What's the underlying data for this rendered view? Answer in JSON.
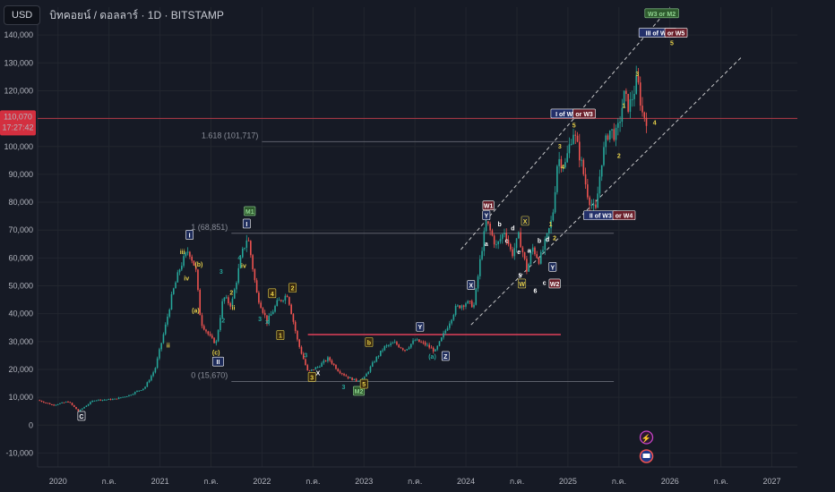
{
  "header": {
    "currency": "USD",
    "symbol": "บิทคอยน์ / ดอลลาร์ · 1D · BITSTAMP"
  },
  "price_badge": {
    "price": "110,070",
    "timer": "17:27:42"
  },
  "colors": {
    "bg": "#161a25",
    "up": "#26a69a",
    "down": "#ef5350",
    "grid": "#22262f",
    "resistance": "#e0405a",
    "channel": "#e6e6e6",
    "price_line": "#b23a48"
  },
  "chart_data": {
    "type": "candlestick",
    "title": "บิทคอยน์ / ดอลลาร์ · 1D · BITSTAMP",
    "ylim": [
      -15000,
      150000
    ],
    "y_ticks": [
      "-10,000",
      "0",
      "10,000",
      "20,000",
      "30,000",
      "40,000",
      "50,000",
      "60,000",
      "70,000",
      "80,000",
      "90,000",
      "100,000",
      "110,000",
      "120,000",
      "130,000",
      "140,000"
    ],
    "x_ticks": [
      {
        "label": "2020",
        "t": 2020.0
      },
      {
        "label": "ก.ค.",
        "t": 2020.5
      },
      {
        "label": "2021",
        "t": 2021.0
      },
      {
        "label": "ก.ค.",
        "t": 2021.5
      },
      {
        "label": "2022",
        "t": 2022.0
      },
      {
        "label": "ก.ค.",
        "t": 2022.5
      },
      {
        "label": "2023",
        "t": 2023.0
      },
      {
        "label": "ก.ค.",
        "t": 2023.5
      },
      {
        "label": "2024",
        "t": 2024.0
      },
      {
        "label": "ก.ค.",
        "t": 2024.5
      },
      {
        "label": "2025",
        "t": 2025.0
      },
      {
        "label": "ก.ค.",
        "t": 2025.5
      },
      {
        "label": "2026",
        "t": 2026.0
      },
      {
        "label": "ก.ค.",
        "t": 2026.5
      },
      {
        "label": "2027",
        "t": 2027.0
      }
    ],
    "xlim": [
      2019.8,
      2027.25
    ],
    "price_path": [
      [
        2019.8,
        9000
      ],
      [
        2019.95,
        7200
      ],
      [
        2020.1,
        8500
      ],
      [
        2020.2,
        5000
      ],
      [
        2020.35,
        9000
      ],
      [
        2020.55,
        9300
      ],
      [
        2020.7,
        10800
      ],
      [
        2020.85,
        13500
      ],
      [
        2020.95,
        20000
      ],
      [
        2021.05,
        35000
      ],
      [
        2021.12,
        47000
      ],
      [
        2021.2,
        57000
      ],
      [
        2021.28,
        63000
      ],
      [
        2021.35,
        56000
      ],
      [
        2021.4,
        37000
      ],
      [
        2021.5,
        31000
      ],
      [
        2021.55,
        29500
      ],
      [
        2021.62,
        46000
      ],
      [
        2021.7,
        43000
      ],
      [
        2021.8,
        61000
      ],
      [
        2021.86,
        68000
      ],
      [
        2021.95,
        47000
      ],
      [
        2022.05,
        37000
      ],
      [
        2022.15,
        44000
      ],
      [
        2022.25,
        47000
      ],
      [
        2022.35,
        30000
      ],
      [
        2022.45,
        19000
      ],
      [
        2022.55,
        21000
      ],
      [
        2022.65,
        24000
      ],
      [
        2022.75,
        19500
      ],
      [
        2022.85,
        17000
      ],
      [
        2022.92,
        16000
      ],
      [
        2023.0,
        16800
      ],
      [
        2023.1,
        23000
      ],
      [
        2023.2,
        28000
      ],
      [
        2023.3,
        29500
      ],
      [
        2023.4,
        27000
      ],
      [
        2023.5,
        30500
      ],
      [
        2023.6,
        29000
      ],
      [
        2023.7,
        26500
      ],
      [
        2023.8,
        34000
      ],
      [
        2023.9,
        42000
      ],
      [
        2024.0,
        44000
      ],
      [
        2024.08,
        43000
      ],
      [
        2024.15,
        62000
      ],
      [
        2024.2,
        73000
      ],
      [
        2024.3,
        64000
      ],
      [
        2024.38,
        70000
      ],
      [
        2024.45,
        61000
      ],
      [
        2024.52,
        68000
      ],
      [
        2024.6,
        55000
      ],
      [
        2024.65,
        64000
      ],
      [
        2024.72,
        59000
      ],
      [
        2024.8,
        68000
      ],
      [
        2024.85,
        75000
      ],
      [
        2024.9,
        96000
      ],
      [
        2024.97,
        93000
      ],
      [
        2025.05,
        106000
      ],
      [
        2025.12,
        96000
      ],
      [
        2025.2,
        82000
      ],
      [
        2025.27,
        76000
      ],
      [
        2025.33,
        95000
      ],
      [
        2025.4,
        106000
      ],
      [
        2025.48,
        104000
      ],
      [
        2025.55,
        118000
      ],
      [
        2025.6,
        114000
      ],
      [
        2025.68,
        124000
      ],
      [
        2025.73,
        112000
      ],
      [
        2025.77,
        110070
      ]
    ],
    "fib_levels": [
      {
        "label": "1.618 (101,717)",
        "value": 101717,
        "t0": 2022.0,
        "t1": 2025.0
      },
      {
        "label": "1 (68,851)",
        "value": 68851,
        "t0": 2021.7,
        "t1": 2025.45
      },
      {
        "label": "0 (15,670)",
        "value": 15670,
        "t0": 2021.7,
        "t1": 2025.45
      }
    ],
    "resistance": {
      "value": 32500,
      "t0": 2022.45,
      "t1": 2024.93
    },
    "channel": [
      {
        "t0": 2023.95,
        "v0": 63000,
        "t1": 2026.0,
        "v1": 150000
      },
      {
        "t0": 2024.05,
        "v0": 36000,
        "t1": 2026.7,
        "v1": 132000
      }
    ],
    "current_price": 110070,
    "wave_labels": [
      {
        "text": "W3 or M2",
        "t": 2025.92,
        "v": 147500,
        "fg": "#8fd28f",
        "bg": "#2e5a2e",
        "box": true
      },
      {
        "text": "III of W3",
        "t": 2025.88,
        "v": 140500,
        "fg": "#ffffff",
        "bg": "#23306a",
        "box": true
      },
      {
        "text": "or W5",
        "t": 2026.06,
        "v": 140500,
        "fg": "#ffffff",
        "bg": "#6a1f2a",
        "box": true
      },
      {
        "text": "5",
        "t": 2026.02,
        "v": 137000,
        "fg": "#e8d24a"
      },
      {
        "text": "I of W3",
        "t": 2024.98,
        "v": 111500,
        "fg": "#ffffff",
        "bg": "#23306a",
        "box": true
      },
      {
        "text": "or W3",
        "t": 2025.16,
        "v": 111500,
        "fg": "#ffffff",
        "bg": "#6a1f2a",
        "box": true
      },
      {
        "text": "II of W3",
        "t": 2025.32,
        "v": 75000,
        "fg": "#ffffff",
        "bg": "#23306a",
        "box": true
      },
      {
        "text": "or W4",
        "t": 2025.55,
        "v": 75000,
        "fg": "#ffffff",
        "bg": "#6a1f2a",
        "box": true
      },
      {
        "text": "W1",
        "t": 2024.22,
        "v": 78500,
        "fg": "#ffffff",
        "bg": "#6a1f2a",
        "box": true
      },
      {
        "text": "W2",
        "t": 2024.87,
        "v": 50500,
        "fg": "#ffffff",
        "bg": "#6a1f2a",
        "box": true
      },
      {
        "text": "M1",
        "t": 2021.88,
        "v": 76500,
        "fg": "#8fd28f",
        "bg": "#2e5a2e",
        "box": true
      },
      {
        "text": "M2",
        "t": 2022.95,
        "v": 12000,
        "fg": "#8fd28f",
        "bg": "#2e5a2e",
        "box": true
      },
      {
        "text": "3",
        "t": 2025.68,
        "v": 126000,
        "fg": "#e8d24a"
      },
      {
        "text": "4",
        "t": 2025.85,
        "v": 108500,
        "fg": "#e8d24a"
      },
      {
        "text": "1",
        "t": 2025.55,
        "v": 114500,
        "fg": "#e8d24a"
      },
      {
        "text": "2",
        "t": 2025.5,
        "v": 96500,
        "fg": "#e8d24a"
      },
      {
        "text": "3",
        "t": 2024.92,
        "v": 100000,
        "fg": "#e8d24a"
      },
      {
        "text": "4",
        "t": 2024.95,
        "v": 92500,
        "fg": "#e8d24a"
      },
      {
        "text": "5",
        "t": 2025.06,
        "v": 107500,
        "fg": "#e8d24a"
      },
      {
        "text": "1",
        "t": 2024.83,
        "v": 72000,
        "fg": "#e8d24a"
      },
      {
        "text": "2",
        "t": 2024.87,
        "v": 67000,
        "fg": "#e8d24a"
      },
      {
        "text": "Y",
        "t": 2024.85,
        "v": 56500,
        "fg": "#ffffff",
        "bg": "#1d2b5a",
        "box": true
      },
      {
        "text": "X",
        "t": 2024.58,
        "v": 73000,
        "fg": "#e8d24a",
        "bg": "#1e2230",
        "box": true
      },
      {
        "text": "W",
        "t": 2024.55,
        "v": 50500,
        "fg": "#e8d24a",
        "bg": "#1e2230",
        "box": true
      },
      {
        "text": "a",
        "t": 2024.2,
        "v": 65000,
        "fg": "#ffffff"
      },
      {
        "text": "b",
        "t": 2024.33,
        "v": 72000,
        "fg": "#ffffff"
      },
      {
        "text": "c",
        "t": 2024.4,
        "v": 66000,
        "fg": "#ffffff"
      },
      {
        "text": "d",
        "t": 2024.46,
        "v": 70500,
        "fg": "#ffffff"
      },
      {
        "text": "e",
        "t": 2024.52,
        "v": 62000,
        "fg": "#ffffff"
      },
      {
        "text": "a",
        "t": 2024.62,
        "v": 62500,
        "fg": "#ffffff"
      },
      {
        "text": "b",
        "t": 2024.72,
        "v": 66000,
        "fg": "#ffffff"
      },
      {
        "text": "c",
        "t": 2024.77,
        "v": 51000,
        "fg": "#ffffff"
      },
      {
        "text": "d",
        "t": 2024.8,
        "v": 66500,
        "fg": "#ffffff"
      },
      {
        "text": "5",
        "t": 2024.53,
        "v": 53500,
        "fg": "#ffffff"
      },
      {
        "text": "6",
        "t": 2024.68,
        "v": 48000,
        "fg": "#ffffff"
      },
      {
        "text": "Y",
        "t": 2024.2,
        "v": 75000,
        "fg": "#ffffff",
        "bg": "#1d2b5a",
        "box": true
      },
      {
        "text": "X",
        "t": 2024.05,
        "v": 50000,
        "fg": "#ffffff",
        "bg": "#1d2b5a",
        "box": true
      },
      {
        "text": "Y",
        "t": 2023.55,
        "v": 35000,
        "fg": "#ffffff",
        "bg": "#1d2b5a",
        "box": true
      },
      {
        "text": "Z",
        "t": 2023.8,
        "v": 24500,
        "fg": "#ffffff",
        "bg": "#1d2b5a",
        "box": true
      },
      {
        "text": "(a)",
        "t": 2023.67,
        "v": 24500,
        "fg": "#26a69a"
      },
      {
        "text": "b",
        "t": 2023.05,
        "v": 29500,
        "fg": "#e8d24a",
        "bg": "#3a2a10",
        "box": true
      },
      {
        "text": "5",
        "t": 2023.0,
        "v": 14500,
        "fg": "#e8d24a",
        "bg": "#3a2a10",
        "box": true
      },
      {
        "text": "3",
        "t": 2022.8,
        "v": 13500,
        "fg": "#26a69a"
      },
      {
        "text": "X",
        "t": 2022.55,
        "v": 18500,
        "fg": "#ffffff"
      },
      {
        "text": "3",
        "t": 2022.49,
        "v": 17000,
        "fg": "#e8d24a",
        "bg": "#3a2a10",
        "box": true
      },
      {
        "text": "3",
        "t": 2022.43,
        "v": 25000,
        "fg": "#26a69a"
      },
      {
        "text": "2",
        "t": 2022.3,
        "v": 49000,
        "fg": "#e8d24a",
        "bg": "#3a2a10",
        "box": true
      },
      {
        "text": "1",
        "t": 2022.18,
        "v": 32000,
        "fg": "#e8d24a",
        "bg": "#3a2a10",
        "box": true
      },
      {
        "text": "4",
        "t": 2022.1,
        "v": 47000,
        "fg": "#e8d24a",
        "bg": "#3a2a10",
        "box": true
      },
      {
        "text": "x",
        "t": 2022.05,
        "v": 37000,
        "fg": "#26a69a"
      },
      {
        "text": "3",
        "t": 2021.98,
        "v": 38000,
        "fg": "#26a69a"
      },
      {
        "text": "4",
        "t": 2021.78,
        "v": 60000,
        "fg": "#26a69a"
      },
      {
        "text": "iv",
        "t": 2021.82,
        "v": 57000,
        "fg": "#e8d24a"
      },
      {
        "text": "ii",
        "t": 2021.72,
        "v": 42000,
        "fg": "#e8d24a"
      },
      {
        "text": "2",
        "t": 2021.7,
        "v": 47500,
        "fg": "#e8d24a"
      },
      {
        "text": "3",
        "t": 2021.6,
        "v": 55000,
        "fg": "#26a69a"
      },
      {
        "text": "2",
        "t": 2021.62,
        "v": 37500,
        "fg": "#26a69a"
      },
      {
        "text": "(c)",
        "t": 2021.55,
        "v": 26000,
        "fg": "#e8d24a"
      },
      {
        "text": "(a)",
        "t": 2021.35,
        "v": 41000,
        "fg": "#e8d24a"
      },
      {
        "text": "(b)",
        "t": 2021.38,
        "v": 57500,
        "fg": "#e8d24a"
      },
      {
        "text": "iii",
        "t": 2021.22,
        "v": 62000,
        "fg": "#e8d24a"
      },
      {
        "text": "iv",
        "t": 2021.26,
        "v": 52500,
        "fg": "#e8d24a"
      },
      {
        "text": "ii",
        "t": 2021.08,
        "v": 28500,
        "fg": "#e8d24a"
      },
      {
        "text": "I",
        "t": 2021.29,
        "v": 68000,
        "fg": "#ffffff",
        "bg": "#1d2b5a",
        "box": true
      },
      {
        "text": "II",
        "t": 2021.57,
        "v": 22500,
        "fg": "#ffffff",
        "bg": "#1d2b5a",
        "box": true
      },
      {
        "text": "I",
        "t": 2021.85,
        "v": 72000,
        "fg": "#ffffff",
        "bg": "#1d2b5a",
        "box": true
      },
      {
        "text": "C",
        "t": 2020.23,
        "v": 3000,
        "fg": "#ffffff",
        "bg": "#1e2230",
        "box": true
      }
    ]
  }
}
